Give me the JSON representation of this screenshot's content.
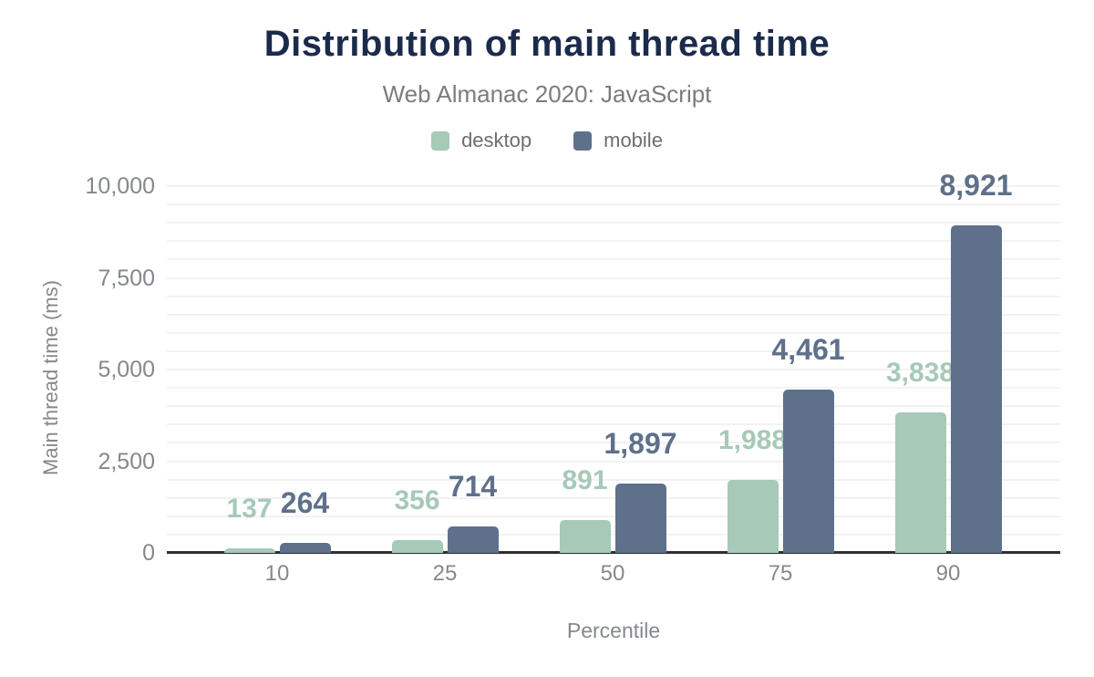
{
  "header": {
    "title": "Distribution of main thread time",
    "subtitle": "Web Almanac 2020: JavaScript"
  },
  "colors": {
    "title": "#1b2b4c",
    "subtitle_text": "#797c80",
    "axis_text": "#85888c",
    "gridline": "#f2f2f5",
    "baseline": "#2f2f2f",
    "desktop": "#a7c9b7",
    "mobile": "#5f708a"
  },
  "chart_data": {
    "type": "bar",
    "title": "Distribution of main thread time",
    "subtitle": "Web Almanac 2020: JavaScript",
    "xlabel": "Percentile",
    "ylabel": "Main thread time (ms)",
    "categories": [
      "10",
      "25",
      "50",
      "75",
      "90"
    ],
    "series": [
      {
        "name": "desktop",
        "color": "#a7c9b7",
        "values": [
          137,
          356,
          891,
          1988,
          3838
        ],
        "labels": [
          "137",
          "356",
          "891",
          "1,988",
          "3,838"
        ]
      },
      {
        "name": "mobile",
        "color": "#5f708a",
        "values": [
          264,
          714,
          1897,
          4461,
          8921
        ],
        "labels": [
          "264",
          "714",
          "1,897",
          "4,461",
          "8,921"
        ]
      }
    ],
    "ylim": [
      0,
      10000
    ],
    "yticks": [
      0,
      2500,
      5000,
      7500,
      10000
    ],
    "ytick_labels": [
      "0",
      "2,500",
      "5,000",
      "7,500",
      "10,000"
    ],
    "grid": {
      "on": true,
      "minor_step": 500
    },
    "legend_position": "top",
    "data_labels": "above bars, colored per series"
  },
  "legend": {
    "items": [
      {
        "label": "desktop",
        "color": "#a7c9b7"
      },
      {
        "label": "mobile",
        "color": "#5f708a"
      }
    ]
  }
}
